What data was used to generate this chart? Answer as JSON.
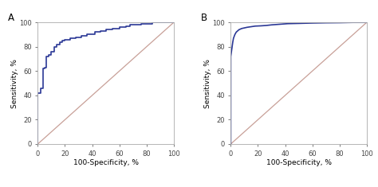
{
  "panel_A_label": "A",
  "panel_B_label": "B",
  "xlabel": "100-Specificity, %",
  "ylabel": "Sensitivity, %",
  "xticks": [
    0,
    20,
    40,
    60,
    80,
    100
  ],
  "yticks": [
    0,
    20,
    40,
    60,
    80,
    100
  ],
  "xlim": [
    0,
    100
  ],
  "ylim": [
    0,
    100
  ],
  "roc_color": "#2b3896",
  "diagonal_color": "#c8a098",
  "roc_linewidth": 1.2,
  "diagonal_linewidth": 0.9,
  "tick_fontsize": 6.0,
  "label_fontsize": 6.5,
  "panel_label_fontsize": 8.5,
  "spine_color": "#aaaaaa",
  "roc_A_x": [
    0,
    0,
    2,
    2,
    4,
    4,
    5,
    5,
    6,
    6,
    8,
    8,
    10,
    10,
    12,
    12,
    14,
    14,
    16,
    16,
    18,
    18,
    20,
    20,
    24,
    24,
    28,
    28,
    32,
    32,
    36,
    36,
    42,
    42,
    46,
    46,
    50,
    50,
    55,
    55,
    60,
    60,
    65,
    65,
    68,
    68,
    72,
    72,
    76,
    76,
    80,
    80,
    84,
    84,
    88,
    88,
    90,
    90,
    94,
    94,
    100
  ],
  "roc_A_y": [
    0,
    42,
    42,
    46,
    46,
    62,
    62,
    63,
    63,
    72,
    72,
    73,
    73,
    76,
    76,
    80,
    80,
    82,
    82,
    84,
    84,
    85,
    85,
    86,
    86,
    87,
    87,
    88,
    88,
    89,
    89,
    90,
    90,
    92,
    92,
    93,
    93,
    94,
    94,
    95,
    95,
    96,
    96,
    97,
    97,
    98,
    98,
    98,
    98,
    99,
    99,
    99,
    99,
    100,
    100,
    100,
    100,
    100,
    100,
    100,
    100
  ],
  "roc_B_x": [
    0,
    0,
    0.5,
    1,
    1.5,
    2,
    3,
    4,
    5,
    6,
    7,
    8,
    10,
    12,
    15,
    18,
    22,
    26,
    30,
    36,
    42,
    50,
    60,
    70,
    80,
    90,
    100
  ],
  "roc_B_y": [
    0,
    72,
    76,
    80,
    84,
    87,
    90,
    92,
    93,
    94,
    94.5,
    95,
    95.5,
    96,
    96.5,
    97,
    97.2,
    97.5,
    98,
    98.5,
    99,
    99.2,
    99.5,
    99.7,
    99.8,
    100,
    100
  ]
}
